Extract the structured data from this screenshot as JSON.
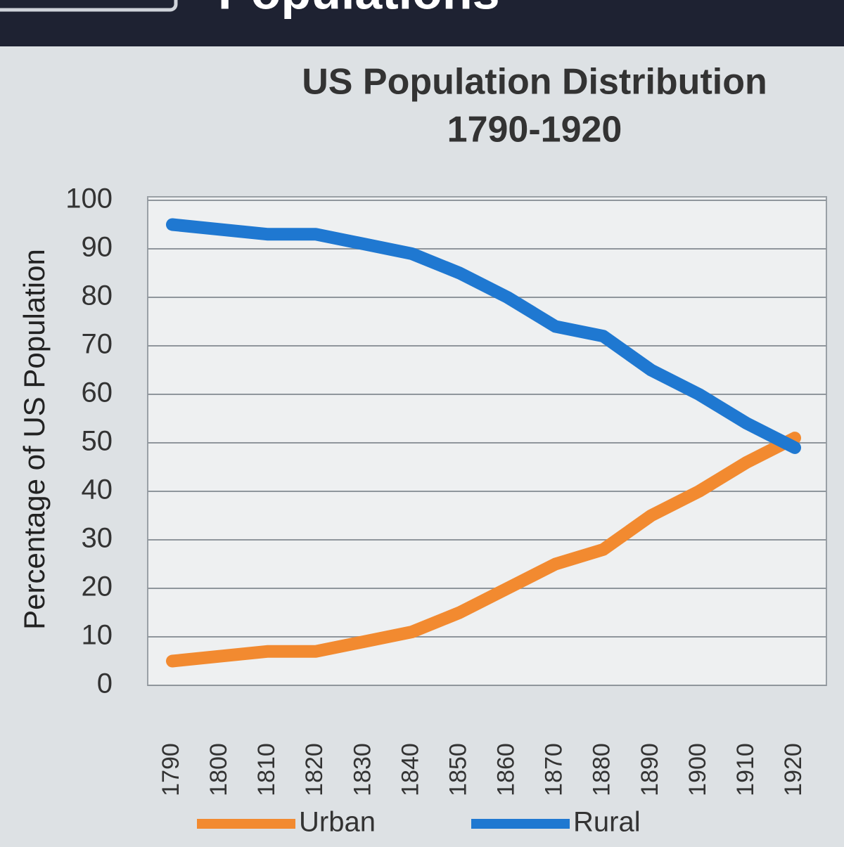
{
  "header": {
    "title": "Populations"
  },
  "chart_data": {
    "type": "line",
    "title": "US Population Distribution",
    "subtitle": "1790-1920",
    "y_label": "Percentage of US Population",
    "categories": [
      "1790",
      "1800",
      "1810",
      "1820",
      "1830",
      "1840",
      "1850",
      "1860",
      "1870",
      "1880",
      "1890",
      "1900",
      "1910",
      "1920"
    ],
    "series": [
      {
        "name": "Urban",
        "color": "#f28a30",
        "values": [
          5,
          6,
          7,
          7,
          9,
          11,
          15,
          20,
          25,
          28,
          35,
          40,
          46,
          51
        ]
      },
      {
        "name": "Rural",
        "color": "#1f78d1",
        "values": [
          95,
          94,
          93,
          93,
          91,
          89,
          85,
          80,
          74,
          72,
          65,
          60,
          54,
          49
        ]
      }
    ],
    "ylim": [
      0,
      100
    ],
    "yticks": [
      0,
      10,
      20,
      30,
      40,
      50,
      60,
      70,
      80,
      90,
      100
    ],
    "grid": true
  }
}
